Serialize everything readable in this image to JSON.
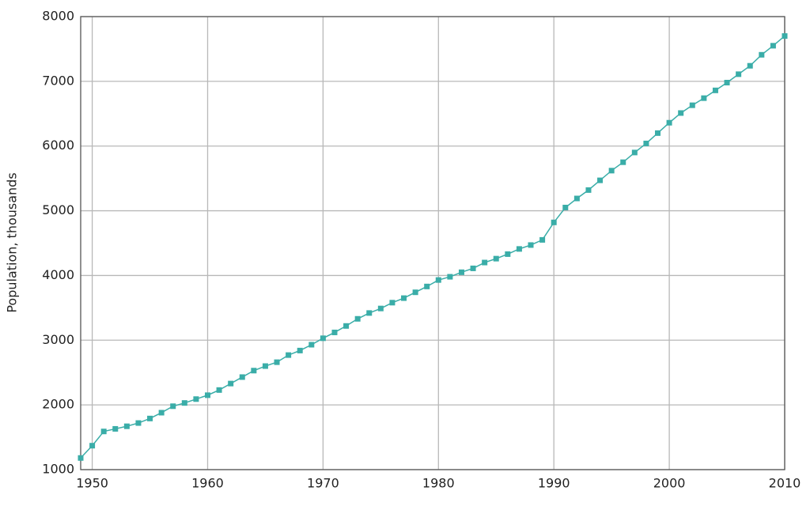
{
  "chart_data": {
    "type": "line",
    "ylabel": "Population, thousands",
    "x": [
      1949,
      1950,
      1951,
      1952,
      1953,
      1954,
      1955,
      1956,
      1957,
      1958,
      1959,
      1960,
      1961,
      1962,
      1963,
      1964,
      1965,
      1966,
      1967,
      1968,
      1969,
      1970,
      1971,
      1972,
      1973,
      1974,
      1975,
      1976,
      1977,
      1978,
      1979,
      1980,
      1981,
      1982,
      1983,
      1984,
      1985,
      1986,
      1987,
      1988,
      1989,
      1990,
      1991,
      1992,
      1993,
      1994,
      1995,
      1996,
      1997,
      1998,
      1999,
      2000,
      2001,
      2002,
      2003,
      2004,
      2005,
      2006,
      2007,
      2008,
      2009,
      2010
    ],
    "values": [
      1180,
      1370,
      1590,
      1630,
      1670,
      1720,
      1790,
      1880,
      1980,
      2030,
      2090,
      2150,
      2230,
      2330,
      2430,
      2530,
      2600,
      2660,
      2770,
      2840,
      2930,
      3030,
      3120,
      3220,
      3330,
      3420,
      3490,
      3580,
      3650,
      3740,
      3830,
      3930,
      3980,
      4050,
      4110,
      4200,
      4260,
      4330,
      4410,
      4470,
      4550,
      4820,
      5050,
      5190,
      5320,
      5470,
      5620,
      5750,
      5900,
      6040,
      6200,
      6360,
      6510,
      6630,
      6740,
      6860,
      6980,
      7110,
      7240,
      7410,
      7550,
      7700
    ],
    "color": "#3aada8",
    "xlim": [
      1949,
      2010
    ],
    "xticks": [
      1950,
      1960,
      1970,
      1980,
      1990,
      2000,
      2010
    ],
    "ylim": [
      1000,
      8000
    ],
    "yticks": [
      1000,
      2000,
      3000,
      4000,
      5000,
      6000,
      7000,
      8000
    ],
    "grid": true
  }
}
